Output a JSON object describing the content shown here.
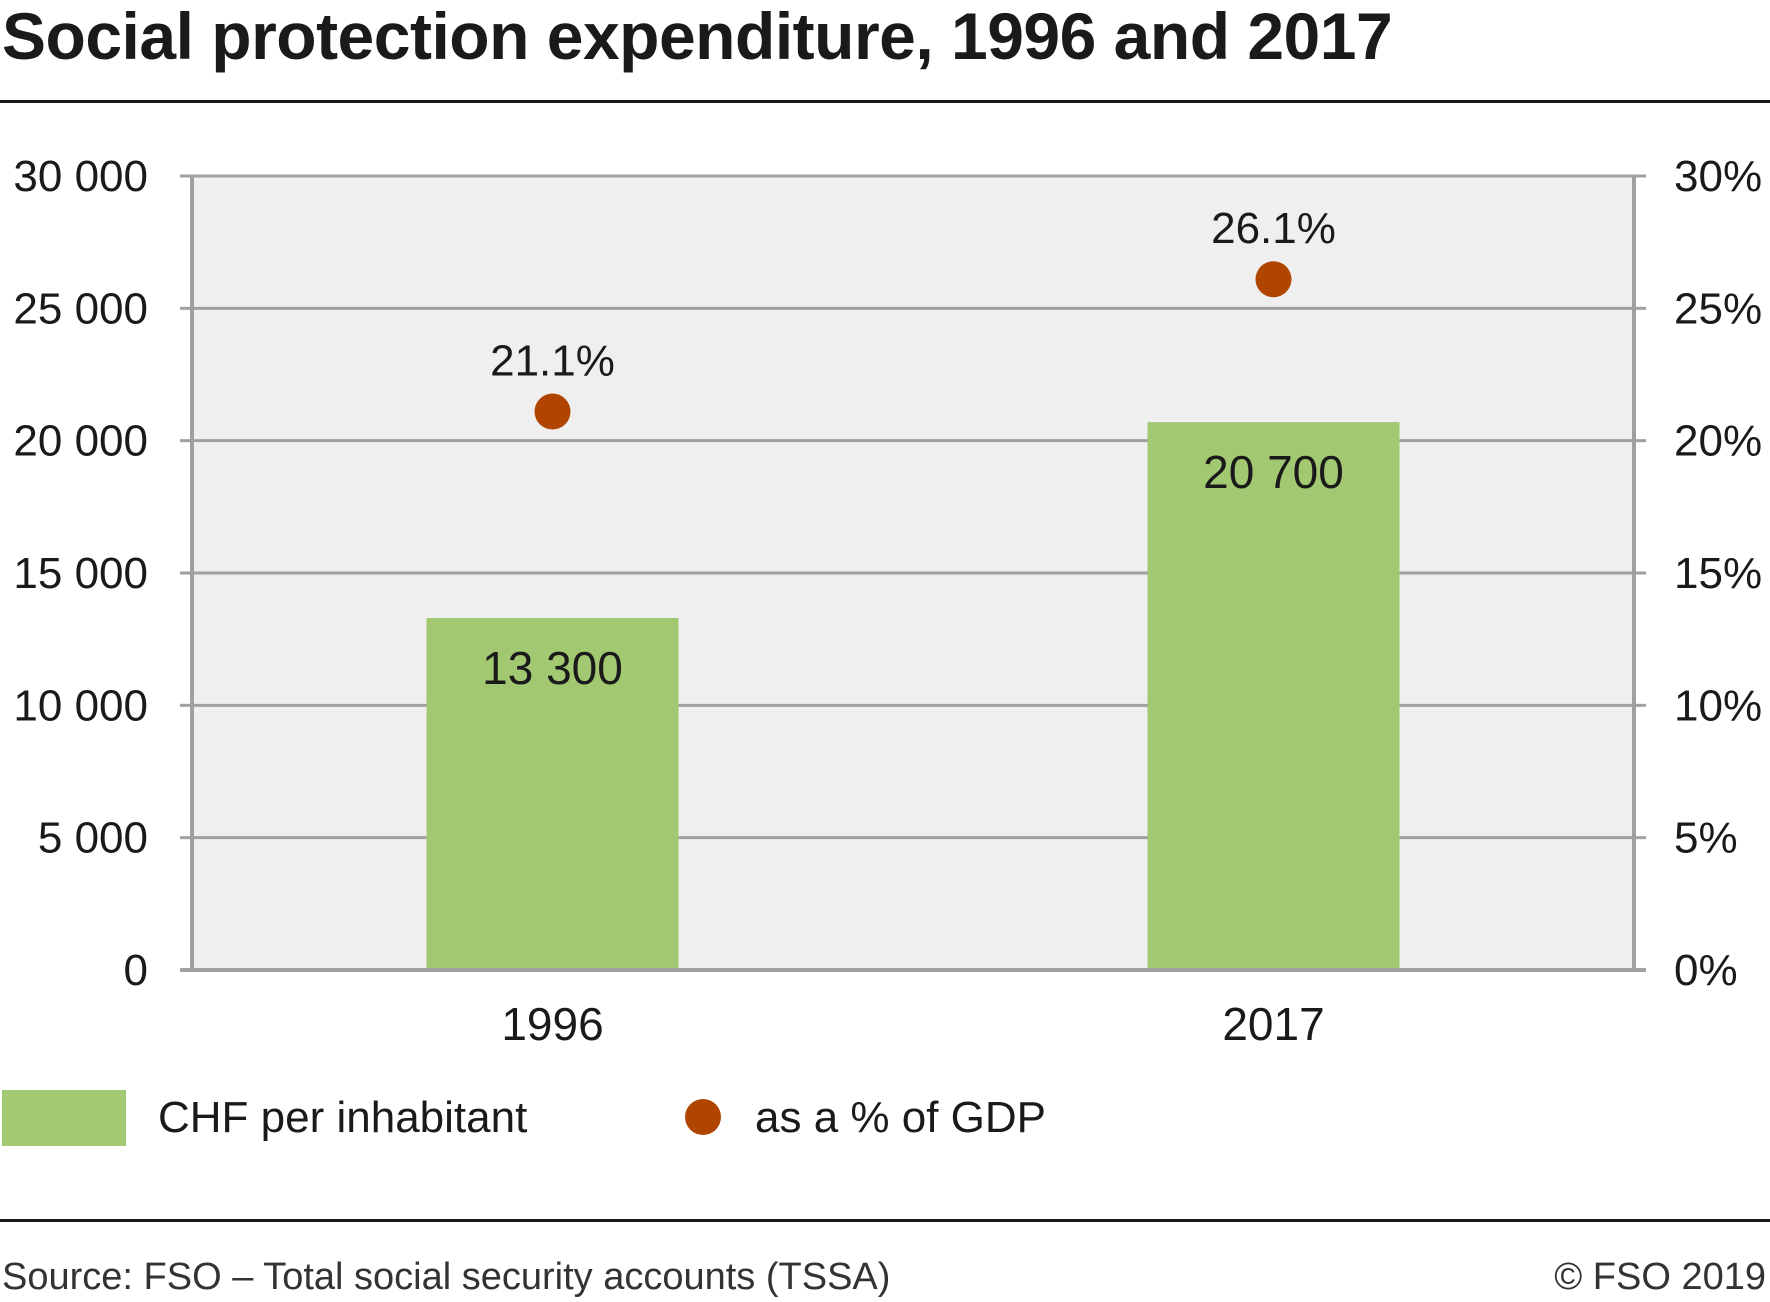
{
  "title": "Social protection expenditure, 1996 and 2017",
  "legend": {
    "bars_label": "CHF per inhabitant",
    "dots_label": "as a % of GDP"
  },
  "footer": {
    "source": "Source: FSO – Total social security accounts (TSSA)",
    "copyright": "© FSO 2019"
  },
  "colors": {
    "bar": "#a2c971",
    "dot": "#b04500",
    "plot_background": "#efefef",
    "grid": "#a0a0a0"
  },
  "chart_data": {
    "type": "bar",
    "title": "Social protection expenditure, 1996 and 2017",
    "categories": [
      "1996",
      "2017"
    ],
    "series": [
      {
        "name": "CHF per inhabitant",
        "type": "bar",
        "axis": "left",
        "values": [
          13300,
          20700
        ],
        "labels": [
          "13 300",
          "20 700"
        ]
      },
      {
        "name": "as a % of GDP",
        "type": "scatter",
        "axis": "right",
        "values": [
          21.1,
          26.1
        ],
        "labels": [
          "21.1%",
          "26.1%"
        ]
      }
    ],
    "y_left": {
      "range": [
        0,
        30000
      ],
      "ticks": [
        0,
        5000,
        10000,
        15000,
        20000,
        25000,
        30000
      ],
      "tick_labels": [
        "0",
        "5 000",
        "10 000",
        "15 000",
        "20 000",
        "25 000",
        "30 000"
      ]
    },
    "y_right": {
      "range": [
        0,
        30
      ],
      "ticks": [
        0,
        5,
        10,
        15,
        20,
        25,
        30
      ],
      "tick_labels": [
        "0%",
        "5%",
        "10%",
        "15%",
        "20%",
        "25%",
        "30%"
      ]
    },
    "grid": true,
    "legend_position": "bottom-left"
  }
}
